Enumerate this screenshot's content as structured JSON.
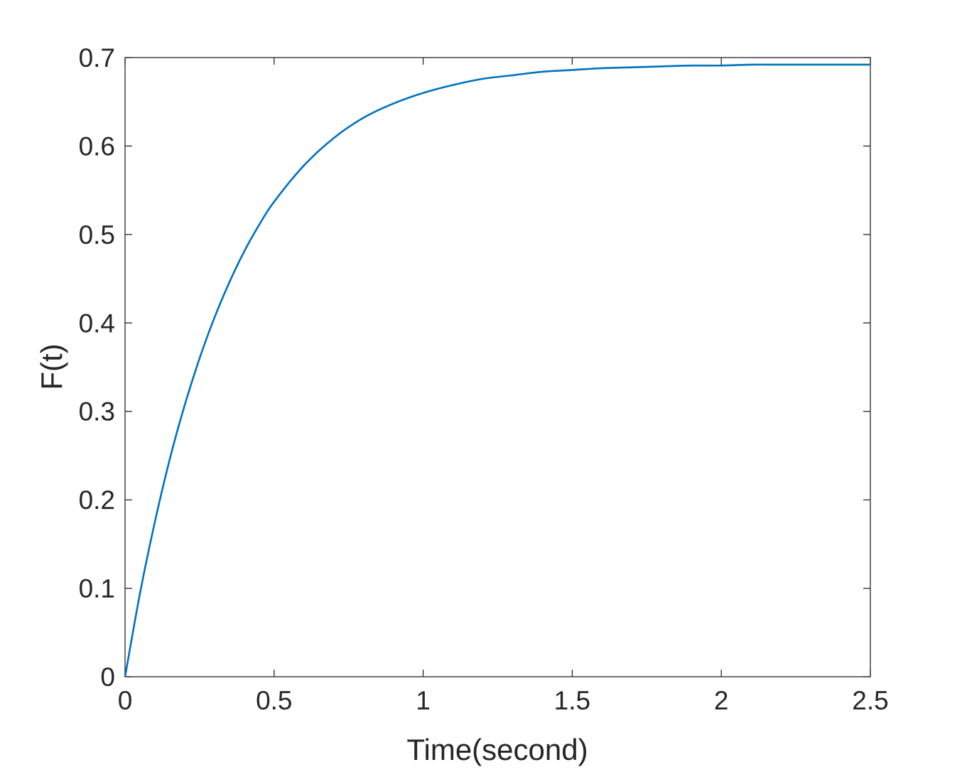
{
  "chart_data": {
    "type": "line",
    "title": "",
    "xlabel": "Time(second)",
    "ylabel": "F(t)",
    "xlim": [
      0,
      2.5
    ],
    "ylim": [
      0,
      0.7
    ],
    "xticks": [
      "0",
      "0.5",
      "1",
      "1.5",
      "2",
      "2.5"
    ],
    "yticks": [
      "0",
      "0.1",
      "0.2",
      "0.3",
      "0.4",
      "0.5",
      "0.6",
      "0.7"
    ],
    "grid": false,
    "legend": "none",
    "line_color": "#0072BD",
    "series": [
      {
        "x": [
          0,
          0.05,
          0.1,
          0.15,
          0.2,
          0.25,
          0.3,
          0.35,
          0.4,
          0.45,
          0.5,
          0.6,
          0.7,
          0.8,
          0.9,
          1.0,
          1.1,
          1.2,
          1.3,
          1.4,
          1.5,
          1.6,
          1.7,
          1.8,
          1.9,
          2.0,
          2.1,
          2.2,
          2.3,
          2.4,
          2.5
        ],
        "y": [
          0,
          0.094,
          0.175,
          0.246,
          0.307,
          0.36,
          0.406,
          0.446,
          0.481,
          0.511,
          0.537,
          0.578,
          0.609,
          0.632,
          0.648,
          0.66,
          0.669,
          0.676,
          0.68,
          0.684,
          0.686,
          0.688,
          0.689,
          0.69,
          0.691,
          0.691,
          0.692,
          0.692,
          0.692,
          0.692,
          0.692
        ]
      }
    ]
  }
}
